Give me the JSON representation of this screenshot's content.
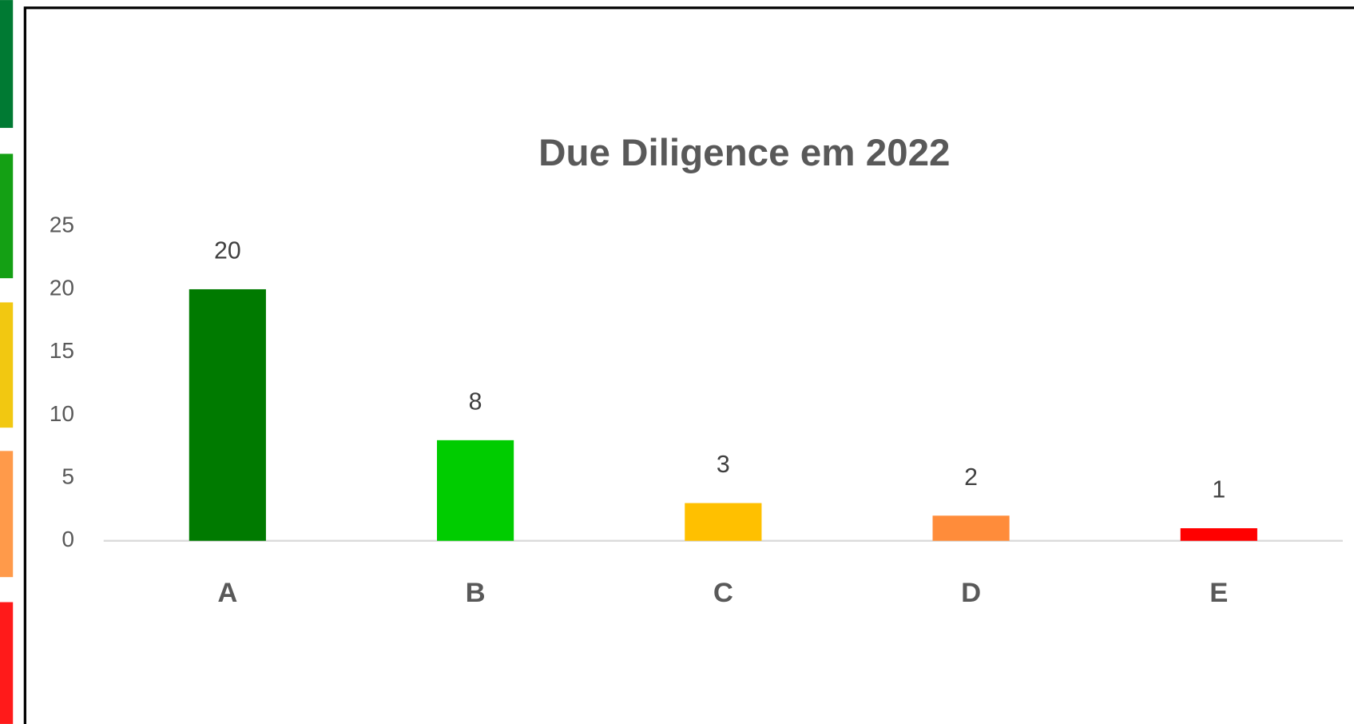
{
  "chart_data": {
    "type": "bar",
    "title": "Due Diligence em 2022",
    "categories": [
      "A",
      "B",
      "C",
      "D",
      "E"
    ],
    "values": [
      20,
      8,
      3,
      2,
      1
    ],
    "colors": [
      "#007a00",
      "#00cc00",
      "#ffc000",
      "#ff8c3a",
      "#ff0000"
    ],
    "ylim": [
      0,
      25
    ],
    "yticks": [
      0,
      5,
      10,
      15,
      20,
      25
    ],
    "grid": false
  }
}
